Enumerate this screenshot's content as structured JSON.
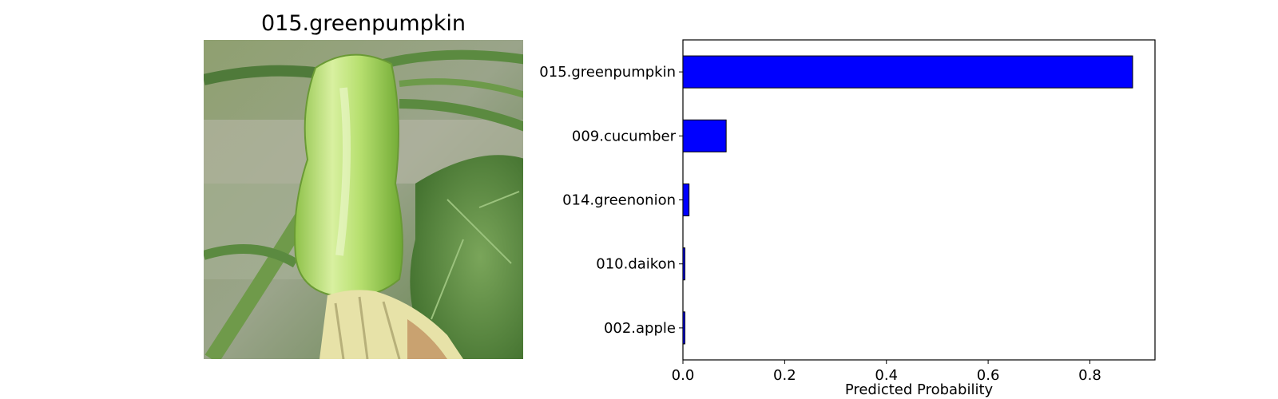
{
  "image_panel": {
    "title": "015.greenpumpkin",
    "photo_subject": "green pumpkin with blossom and vine leaves"
  },
  "colors": {
    "bar_fill": "#0000ff",
    "bar_edge": "#000000",
    "axis": "#000000"
  },
  "chart_data": {
    "type": "bar",
    "orientation": "horizontal",
    "categories": [
      "015.greenpumpkin",
      "009.cucumber",
      "014.greenonion",
      "010.daikon",
      "002.apple"
    ],
    "values": [
      0.884,
      0.085,
      0.012,
      0.003,
      0.003
    ],
    "xlabel": "Predicted Probability",
    "ylabel": "",
    "xlim": [
      0,
      0.928
    ],
    "xticks": [
      "0.0",
      "0.2",
      "0.4",
      "0.6",
      "0.8"
    ],
    "grid": false
  }
}
